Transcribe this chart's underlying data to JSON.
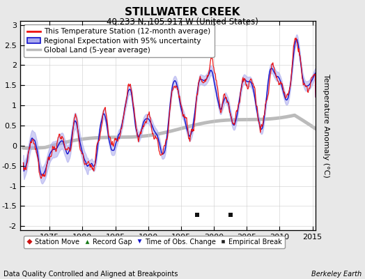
{
  "title": "STILLWATER CREEK",
  "subtitle": "40.233 N, 105.917 W (United States)",
  "ylabel": "Temperature Anomaly (°C)",
  "footer_left": "Data Quality Controlled and Aligned at Breakpoints",
  "footer_right": "Berkeley Earth",
  "xlim": [
    1970.5,
    2015.5
  ],
  "ylim": [
    -2.1,
    3.1
  ],
  "yticks": [
    -2,
    -1.5,
    -1,
    -0.5,
    0,
    0.5,
    1,
    1.5,
    2,
    2.5,
    3
  ],
  "xticks": [
    1975,
    1980,
    1985,
    1990,
    1995,
    2000,
    2005,
    2010,
    2015
  ],
  "background_color": "#e8e8e8",
  "plot_bg_color": "#ffffff",
  "red_color": "#ee1111",
  "blue_color": "#1111cc",
  "blue_fill_color": "#aaaaee",
  "gray_color": "#bbbbbb",
  "legend_entries": [
    "This Temperature Station (12-month average)",
    "Regional Expectation with 95% uncertainty",
    "Global Land (5-year average)"
  ],
  "marker_legend": [
    {
      "marker": "D",
      "color": "#cc1111",
      "label": "Station Move"
    },
    {
      "marker": "^",
      "color": "#117711",
      "label": "Record Gap"
    },
    {
      "marker": "v",
      "color": "#1111cc",
      "label": "Time of Obs. Change"
    },
    {
      "marker": "s",
      "color": "#222222",
      "label": "Empirical Break"
    }
  ],
  "empirical_break_markers": [
    1997.5,
    2002.5
  ],
  "seed": 42
}
